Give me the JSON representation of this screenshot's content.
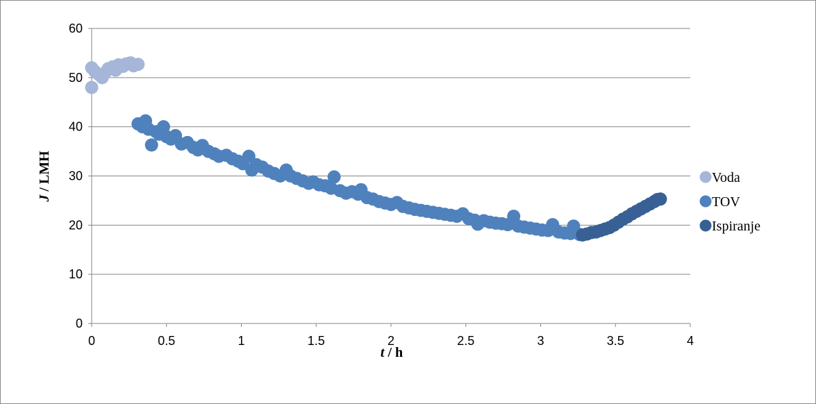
{
  "chart_data": {
    "type": "scatter",
    "title": "",
    "xlabel": {
      "var": "t",
      "unit": " / h"
    },
    "ylabel": {
      "var": "J",
      "unit": " / LMH"
    },
    "xlim": [
      0,
      4
    ],
    "ylim": [
      0,
      60
    ],
    "xticks": [
      "0",
      "0.5",
      "1",
      "1.5",
      "2",
      "2.5",
      "3",
      "3.5",
      "4"
    ],
    "yticks": [
      "0",
      "10",
      "20",
      "30",
      "40",
      "50",
      "60"
    ],
    "grid": {
      "horizontal": true,
      "vertical": false
    },
    "legend_position": "right",
    "series": [
      {
        "name": "Voda",
        "color": "#a5b6d8",
        "points": [
          [
            0.0,
            48.0
          ],
          [
            0.0,
            52.0
          ],
          [
            0.02,
            51.3
          ],
          [
            0.05,
            50.6
          ],
          [
            0.07,
            50.0
          ],
          [
            0.09,
            51.0
          ],
          [
            0.11,
            51.8
          ],
          [
            0.14,
            52.2
          ],
          [
            0.16,
            51.5
          ],
          [
            0.18,
            52.6
          ],
          [
            0.21,
            52.3
          ],
          [
            0.23,
            52.8
          ],
          [
            0.26,
            53.0
          ],
          [
            0.28,
            52.4
          ],
          [
            0.31,
            52.7
          ]
        ]
      },
      {
        "name": "TOV",
        "color": "#4f81bd",
        "points": [
          [
            0.31,
            40.6
          ],
          [
            0.34,
            40.0
          ],
          [
            0.36,
            41.2
          ],
          [
            0.38,
            39.5
          ],
          [
            0.4,
            36.3
          ],
          [
            0.43,
            39.0
          ],
          [
            0.45,
            38.5
          ],
          [
            0.48,
            40.0
          ],
          [
            0.5,
            38.0
          ],
          [
            0.53,
            37.5
          ],
          [
            0.56,
            38.2
          ],
          [
            0.6,
            36.5
          ],
          [
            0.64,
            36.8
          ],
          [
            0.68,
            35.8
          ],
          [
            0.71,
            35.3
          ],
          [
            0.74,
            36.2
          ],
          [
            0.78,
            35.0
          ],
          [
            0.82,
            34.5
          ],
          [
            0.85,
            34.0
          ],
          [
            0.9,
            34.2
          ],
          [
            0.94,
            33.5
          ],
          [
            0.98,
            33.0
          ],
          [
            1.01,
            32.5
          ],
          [
            1.05,
            34.0
          ],
          [
            1.07,
            31.2
          ],
          [
            1.1,
            32.3
          ],
          [
            1.14,
            31.8
          ],
          [
            1.18,
            31.0
          ],
          [
            1.22,
            30.5
          ],
          [
            1.26,
            30.0
          ],
          [
            1.3,
            31.2
          ],
          [
            1.33,
            30.0
          ],
          [
            1.37,
            29.5
          ],
          [
            1.41,
            29.0
          ],
          [
            1.45,
            28.5
          ],
          [
            1.48,
            28.8
          ],
          [
            1.52,
            28.2
          ],
          [
            1.56,
            28.0
          ],
          [
            1.6,
            27.5
          ],
          [
            1.62,
            29.8
          ],
          [
            1.66,
            27.0
          ],
          [
            1.7,
            26.5
          ],
          [
            1.74,
            26.8
          ],
          [
            1.78,
            26.3
          ],
          [
            1.8,
            27.2
          ],
          [
            1.84,
            25.6
          ],
          [
            1.88,
            25.3
          ],
          [
            1.92,
            24.8
          ],
          [
            1.96,
            24.5
          ],
          [
            2.0,
            24.2
          ],
          [
            2.04,
            24.6
          ],
          [
            2.08,
            23.8
          ],
          [
            2.12,
            23.5
          ],
          [
            2.16,
            23.2
          ],
          [
            2.2,
            23.0
          ],
          [
            2.24,
            22.8
          ],
          [
            2.28,
            22.6
          ],
          [
            2.32,
            22.4
          ],
          [
            2.36,
            22.2
          ],
          [
            2.4,
            22.0
          ],
          [
            2.44,
            21.8
          ],
          [
            2.48,
            22.3
          ],
          [
            2.52,
            21.3
          ],
          [
            2.56,
            21.0
          ],
          [
            2.58,
            20.2
          ],
          [
            2.62,
            20.9
          ],
          [
            2.66,
            20.6
          ],
          [
            2.7,
            20.4
          ],
          [
            2.74,
            20.3
          ],
          [
            2.78,
            20.1
          ],
          [
            2.82,
            21.8
          ],
          [
            2.85,
            19.8
          ],
          [
            2.89,
            19.6
          ],
          [
            2.93,
            19.4
          ],
          [
            2.97,
            19.2
          ],
          [
            3.01,
            19.0
          ],
          [
            3.05,
            18.9
          ],
          [
            3.08,
            20.1
          ],
          [
            3.12,
            18.6
          ],
          [
            3.16,
            18.4
          ],
          [
            3.2,
            18.3
          ],
          [
            3.22,
            19.8
          ],
          [
            3.26,
            18.1
          ]
        ]
      },
      {
        "name": "Ispiranje",
        "color": "#386095",
        "points": [
          [
            3.28,
            18.0
          ],
          [
            3.31,
            18.2
          ],
          [
            3.34,
            18.5
          ],
          [
            3.37,
            18.6
          ],
          [
            3.4,
            18.9
          ],
          [
            3.43,
            19.2
          ],
          [
            3.46,
            19.5
          ],
          [
            3.49,
            20.0
          ],
          [
            3.52,
            20.6
          ],
          [
            3.55,
            21.2
          ],
          [
            3.58,
            21.7
          ],
          [
            3.61,
            22.3
          ],
          [
            3.64,
            22.8
          ],
          [
            3.67,
            23.3
          ],
          [
            3.7,
            23.8
          ],
          [
            3.73,
            24.3
          ],
          [
            3.76,
            24.8
          ],
          [
            3.78,
            25.2
          ],
          [
            3.8,
            25.3
          ]
        ]
      }
    ]
  }
}
